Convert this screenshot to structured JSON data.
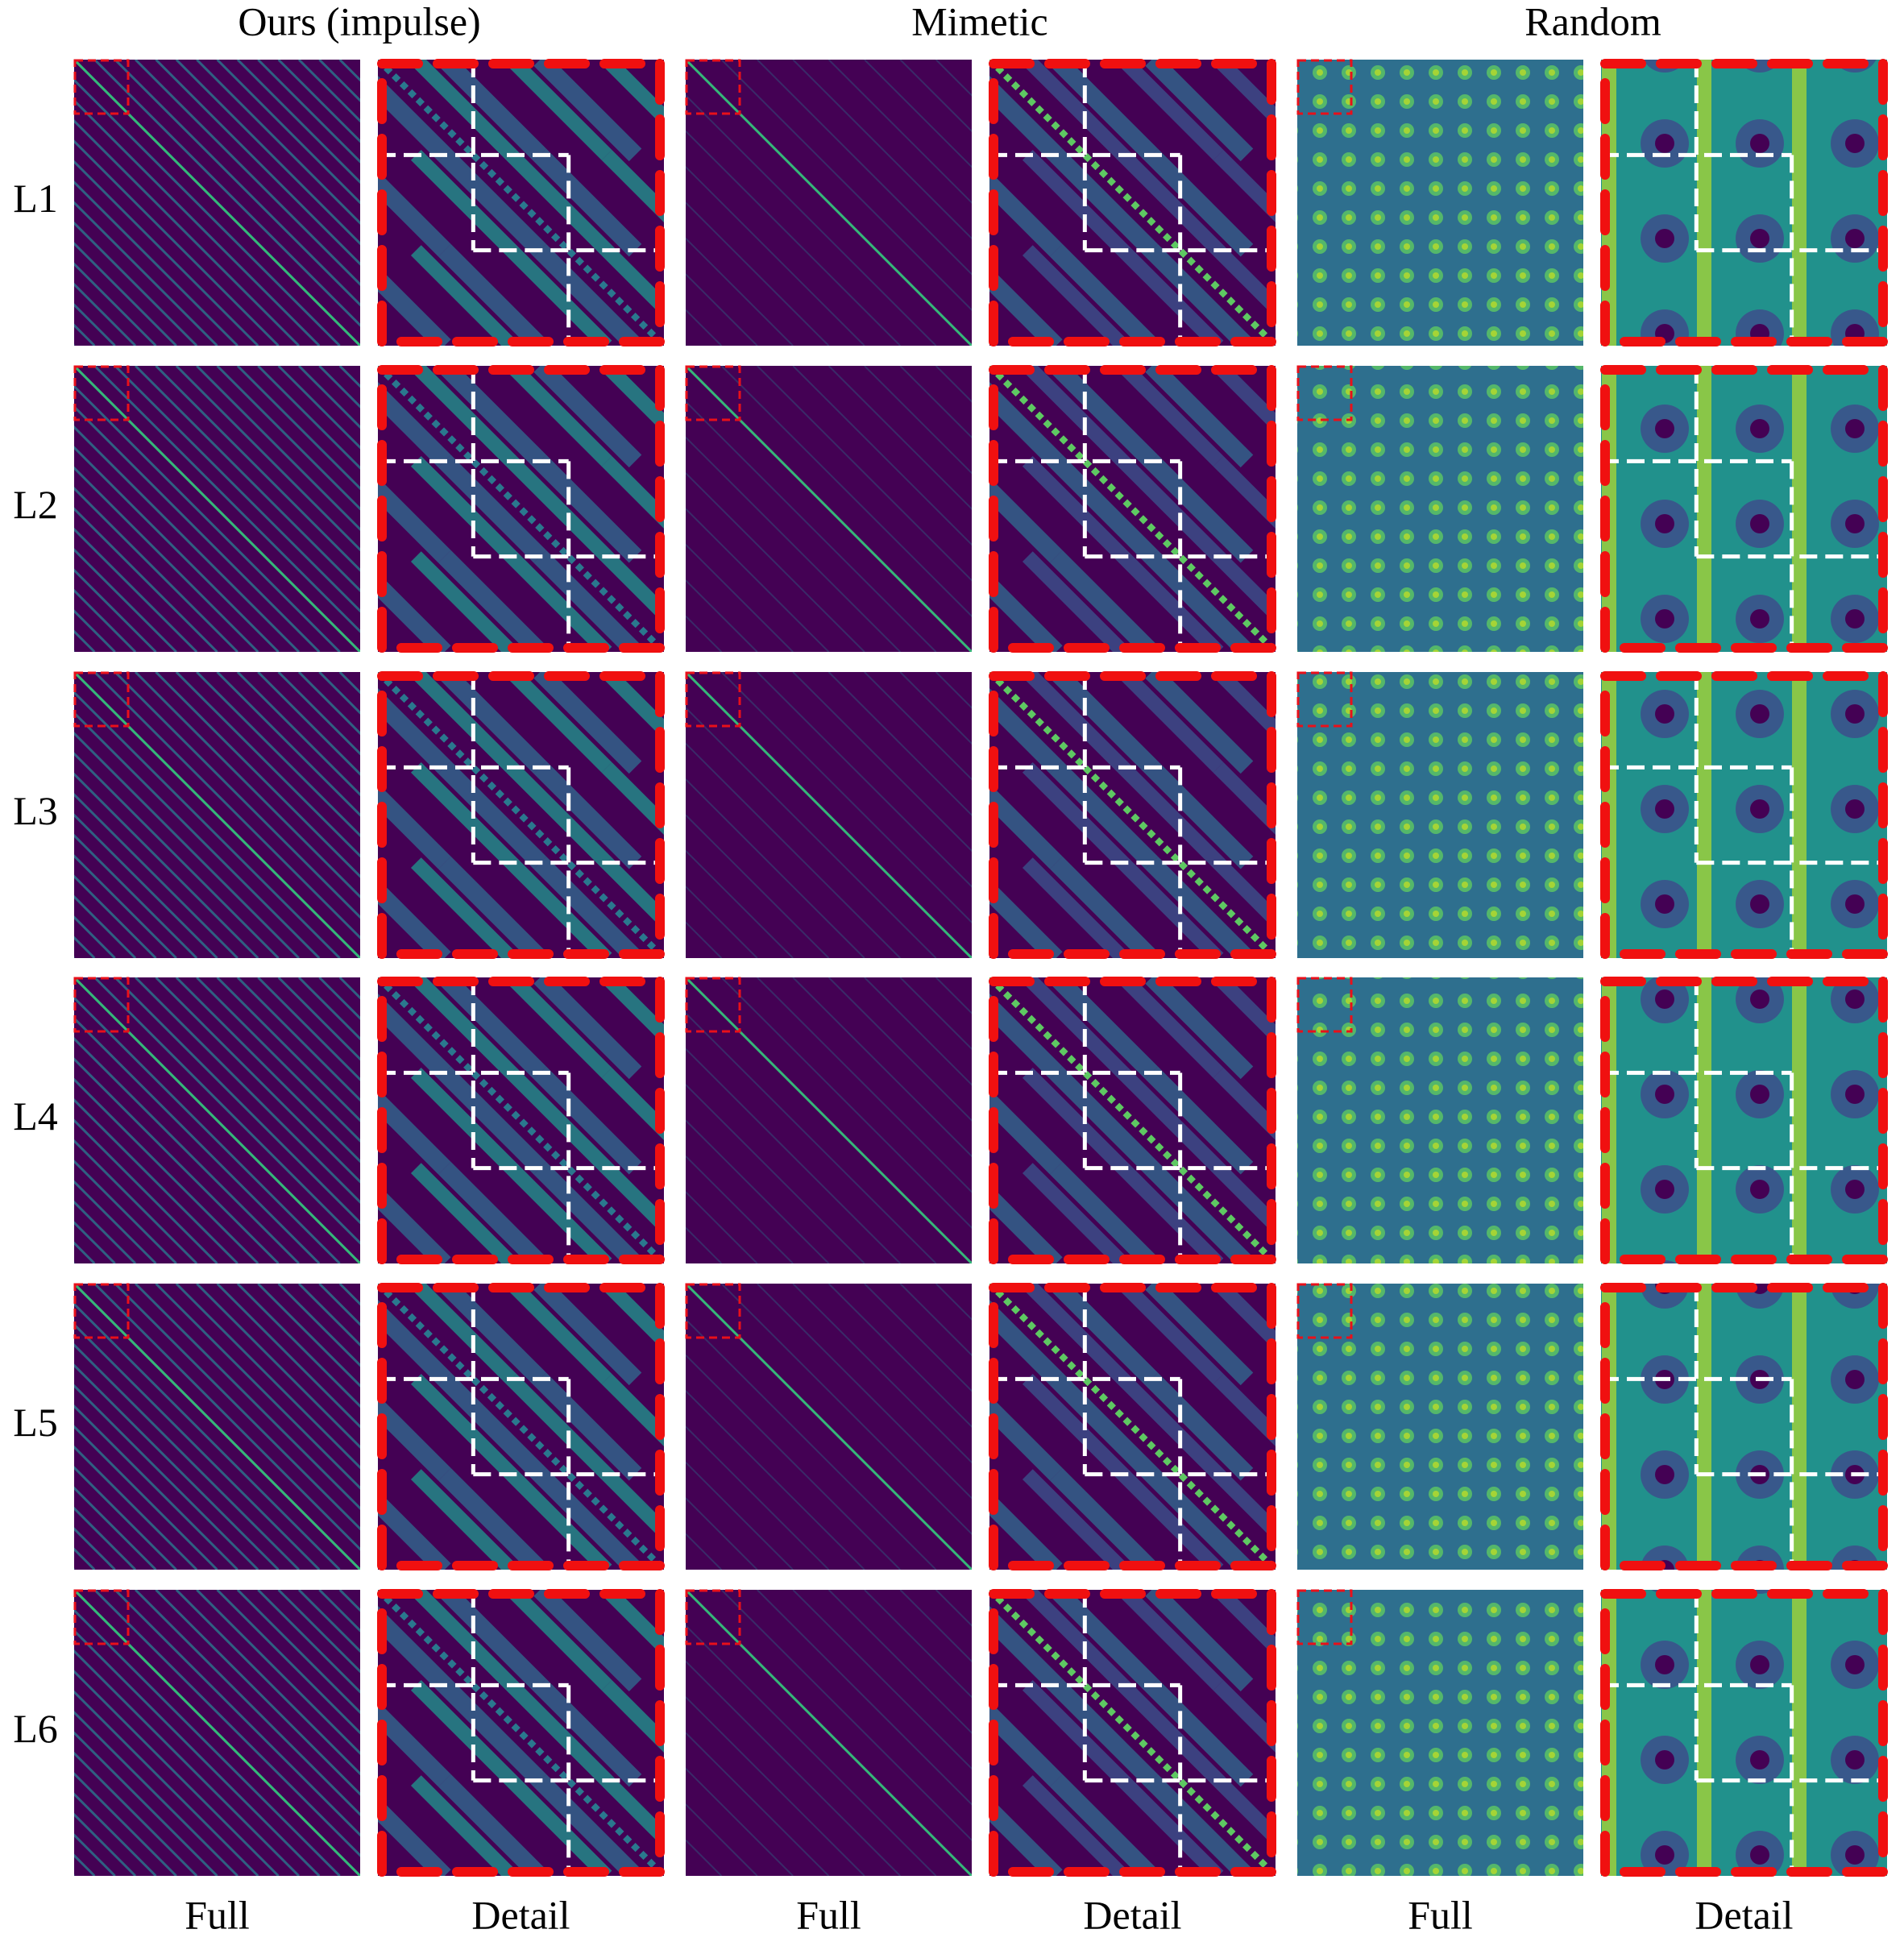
{
  "column_titles": [
    "Ours (impulse)",
    "Mimetic",
    "Random"
  ],
  "row_labels": [
    "L1",
    "L2",
    "L3",
    "L4",
    "L5",
    "L6"
  ],
  "panel_labels": [
    "Full",
    "Detail",
    "Full",
    "Detail",
    "Full",
    "Detail"
  ]
}
